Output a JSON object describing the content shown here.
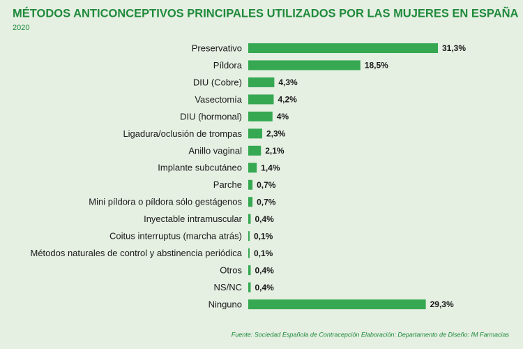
{
  "chart_data": {
    "type": "hbar",
    "title": "MÉTODOS ANTICONCEPTIVOS PRINCIPALES UTILIZADOS POR LAS MUJERES EN ESPAÑA",
    "subtitle": "2020",
    "source": "Fuente: Sociedad Española de Contracepción  Elaboración: Departamento de Diseño: IM Farmacias",
    "color": "#36a852",
    "categories": [
      "Preservativo",
      "Píldora",
      "DIU (Cobre)",
      "Vasectomía",
      "DIU (hormonal)",
      "Ligadura/oclusión de trompas",
      "Anillo vaginal",
      "Implante subcutáneo",
      "Parche",
      "Mini píldora o píldora sólo gestágenos",
      "Inyectable intramuscular",
      "Coitus interruptus (marcha atrás)",
      "Métodos naturales de control y abstinencia periódica",
      "Otros",
      "NS/NC",
      "Ninguno"
    ],
    "values": [
      31.3,
      18.5,
      4.3,
      4.2,
      4,
      2.3,
      2.1,
      1.4,
      0.7,
      0.7,
      0.4,
      0.1,
      0.1,
      0.4,
      0.4,
      29.3
    ],
    "value_labels": [
      "31,3%",
      "18,5%",
      "4,3%",
      "4,2%",
      "4%",
      "2,3%",
      "2,1%",
      "1,4%",
      "0,7%",
      "0,7%",
      "0,4%",
      "0,1%",
      "0,1%",
      "0,4%",
      "0,4%",
      "29,3%"
    ]
  }
}
